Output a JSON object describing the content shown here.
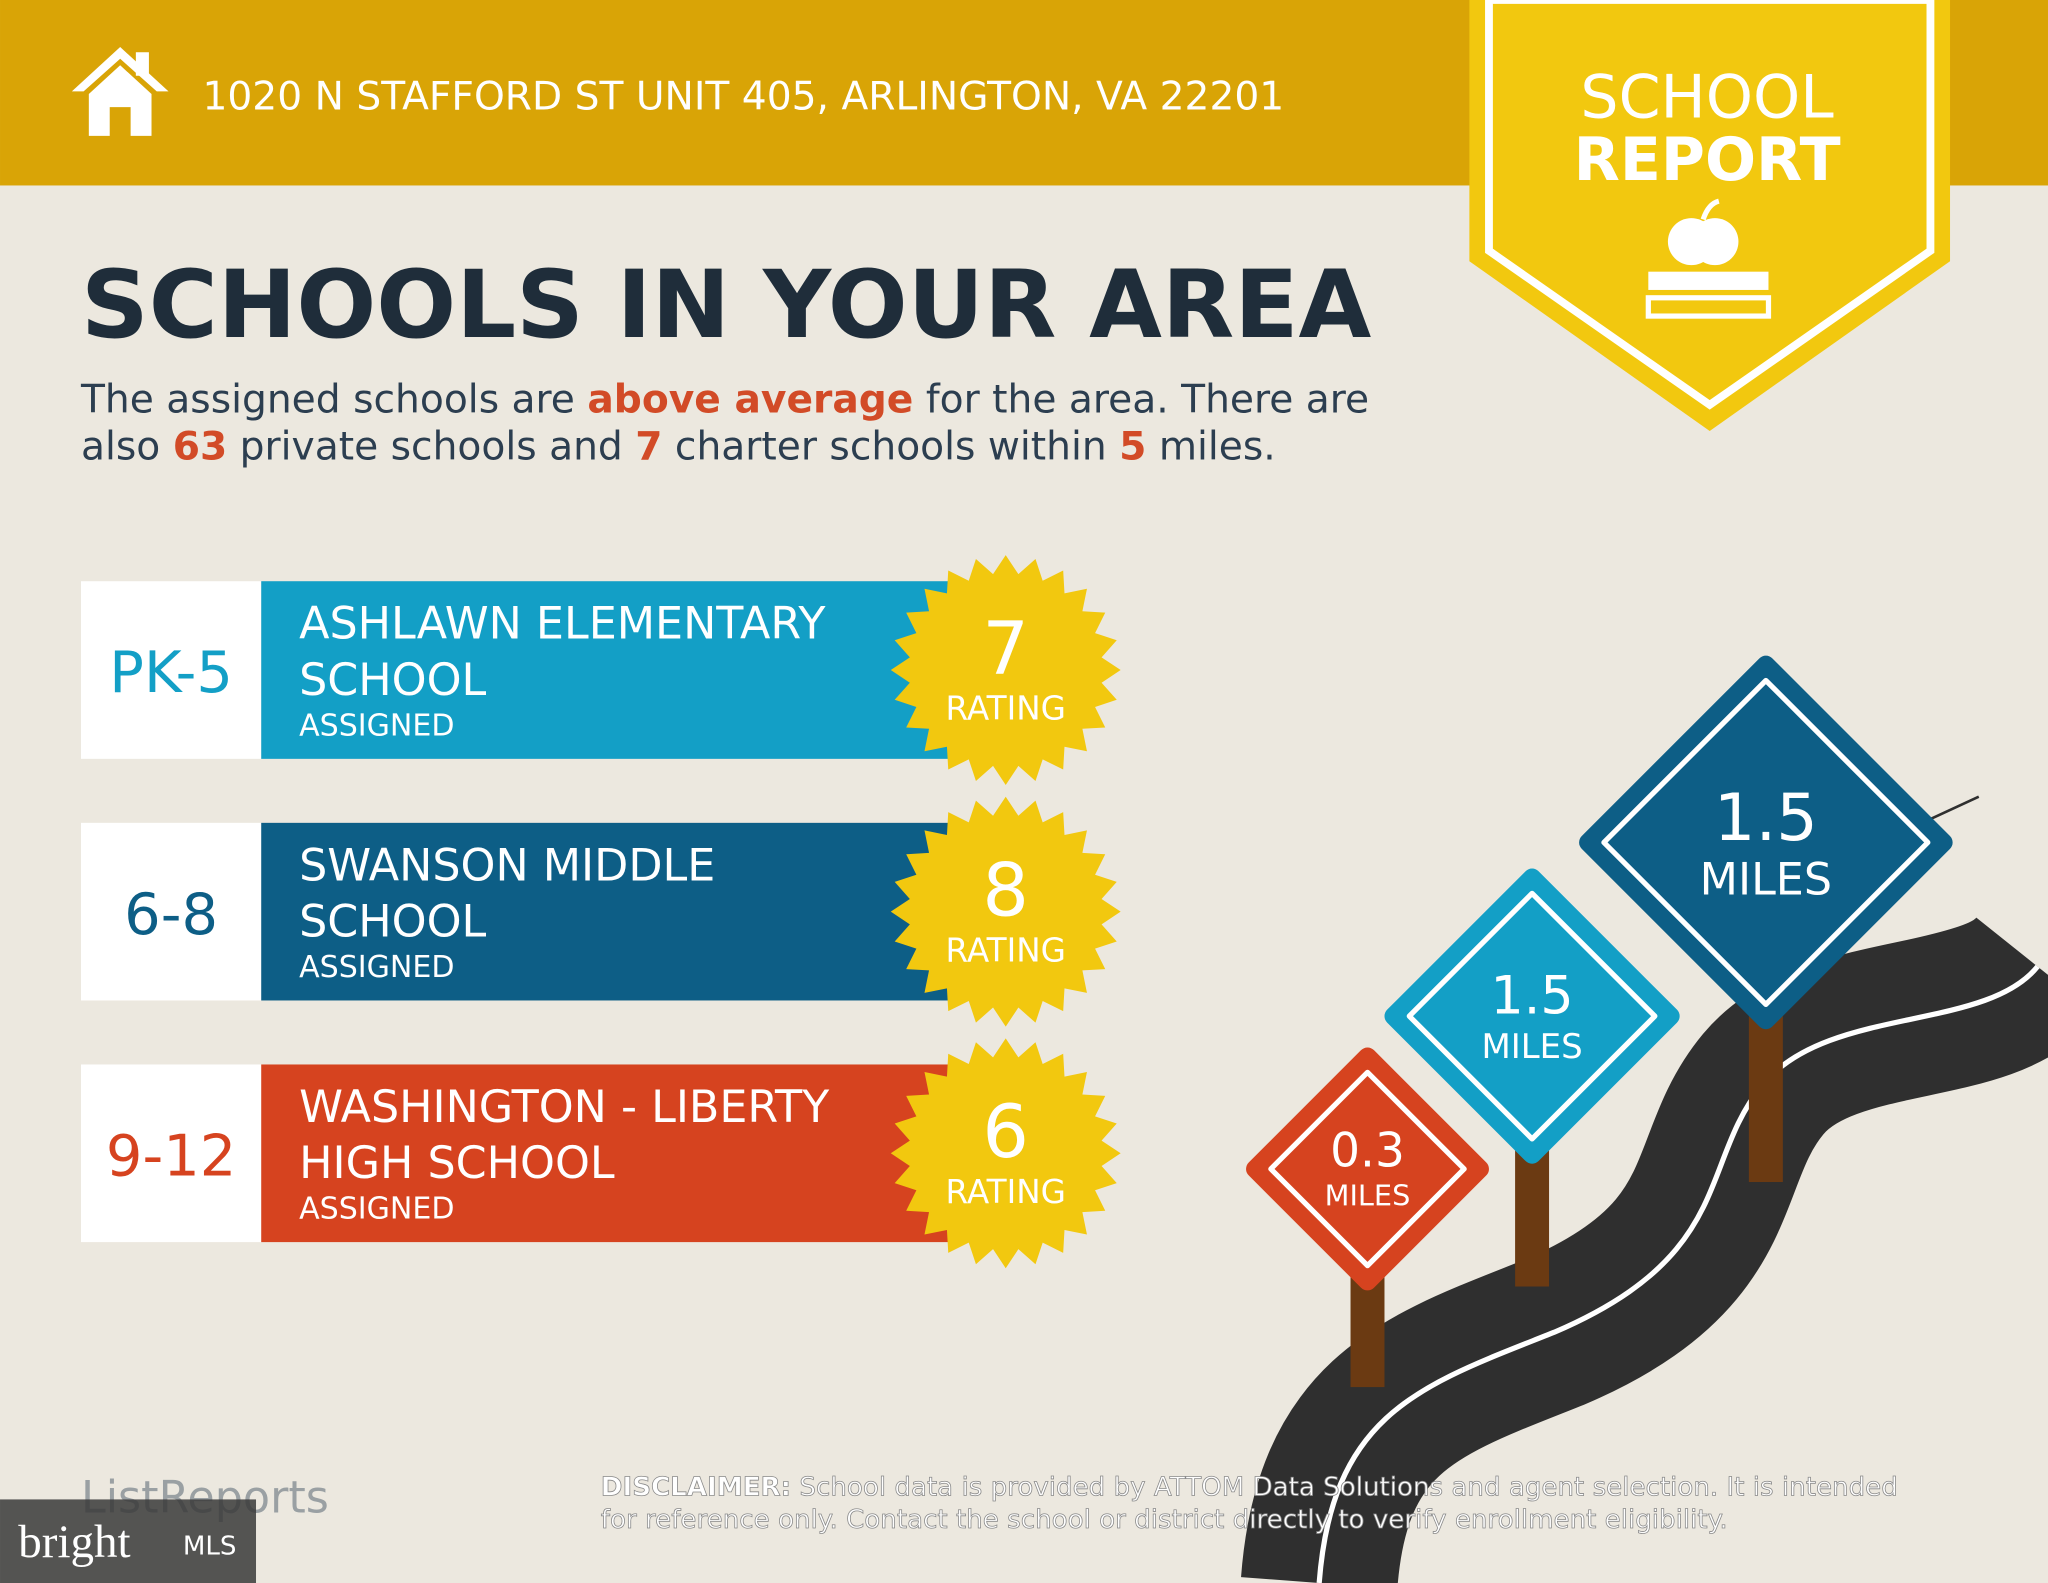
{
  "header": {
    "address": "1020 N STAFFORD ST UNIT 405, ARLINGTON, VA 22201"
  },
  "badge": {
    "line1": "SCHOOL",
    "line2": "REPORT"
  },
  "title": "SCHOOLS IN YOUR AREA",
  "intro": [
    [
      {
        "text": "The assigned schools are ",
        "bold": false
      },
      {
        "text": "above average",
        "bold": true
      },
      {
        "text": " for the area. There are",
        "bold": false
      }
    ],
    [
      {
        "text": "also ",
        "bold": false
      },
      {
        "text": "63",
        "bold": true
      },
      {
        "text": " private schools and ",
        "bold": false
      },
      {
        "text": "7",
        "bold": true
      },
      {
        "text": " charter schools within ",
        "bold": false
      },
      {
        "text": "5",
        "bold": true
      },
      {
        "text": " miles.",
        "bold": false
      }
    ]
  ],
  "schools": [
    {
      "grades": "PK-5",
      "name": [
        "ASHLAWN ELEMENTARY",
        "SCHOOL"
      ],
      "status": "ASSIGNED",
      "rating": "7",
      "rating_label": "RATING",
      "color": "#139fc6"
    },
    {
      "grades": "6-8",
      "name": [
        "SWANSON MIDDLE",
        "SCHOOL"
      ],
      "status": "ASSIGNED",
      "rating": "8",
      "rating_label": "RATING",
      "color": "#0d5e86"
    },
    {
      "grades": "9-12",
      "name": [
        "WASHINGTON - LIBERTY",
        "HIGH SCHOOL"
      ],
      "status": "ASSIGNED",
      "rating": "6",
      "rating_label": "RATING",
      "color": "#d6431f"
    }
  ],
  "signs": [
    {
      "distance": "0.3",
      "unit": "MILES",
      "color": "#d6431f"
    },
    {
      "distance": "1.5",
      "unit": "MILES",
      "color": "#139fc6"
    },
    {
      "distance": "1.5",
      "unit": "MILES",
      "color": "#0d5e86"
    }
  ],
  "disclaimer": {
    "label": "DISCLAIMER:",
    "lines": [
      " School data is provided by ATTOM Data Solutions and agent selection. It is intended",
      "for reference only. Contact the school or district directly to verify enrollment eligibility."
    ]
  },
  "logo": "ListReports",
  "watermark": {
    "brand": "bright",
    "mls": "MLS"
  }
}
